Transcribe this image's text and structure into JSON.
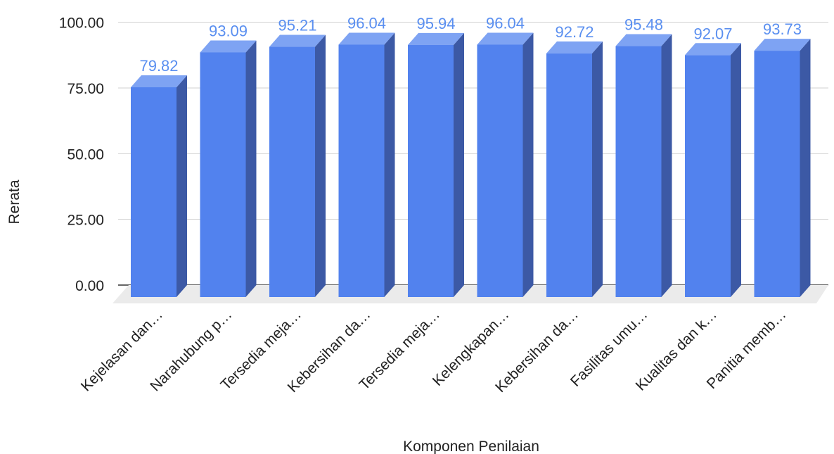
{
  "chart_data": {
    "type": "bar",
    "style": "3d",
    "categories": [
      "Kejelasan dan…",
      "Narahubung p…",
      "Tersedia meja…",
      "Kebersihan da…",
      "Tersedia meja…",
      "Kelengkapan…",
      "Kebersihan da…",
      "Fasilitas umu…",
      "Kualitas dan k…",
      "Panitia memb…"
    ],
    "series": [
      {
        "values": [
          79.82,
          93.09,
          95.21,
          96.04,
          95.94,
          96.04,
          92.72,
          95.48,
          92.07,
          93.73
        ],
        "labels": [
          "79.82",
          "93.09",
          "95.21",
          "96.04",
          "95.94",
          "96.04",
          "92.72",
          "95.48",
          "92.07",
          "93.73"
        ]
      }
    ],
    "xlabel": "Komponen Penilaian",
    "ylabel": "Rerata",
    "ylim": [
      0,
      100
    ],
    "yticks": [
      0,
      25,
      50,
      75,
      100
    ],
    "ytick_labels": [
      "0.00",
      "25.00",
      "50.00",
      "75.00",
      "100.00"
    ],
    "grid": true,
    "colors": {
      "bar_front": "#5282ee",
      "bar_top": "#7ea3f3",
      "bar_side": "#3c59a5",
      "data_label": "#5a8ff0",
      "gridline": "#d0d0d0",
      "floor": "#ebebeb",
      "baseline": "#333333"
    }
  }
}
